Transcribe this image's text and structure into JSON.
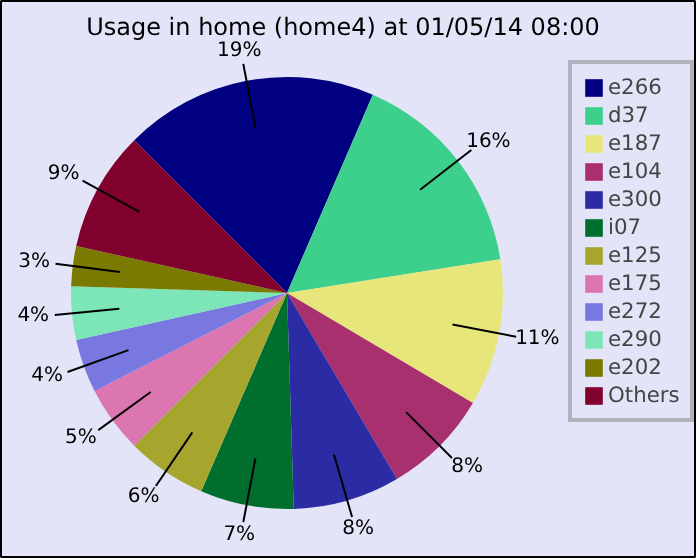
{
  "chart_data": {
    "type": "pie",
    "title": "Usage in home (home4) at 01/05/14 08:00",
    "categories": [
      "e266",
      "d37",
      "e187",
      "e104",
      "e300",
      "i07",
      "e125",
      "e175",
      "e272",
      "e290",
      "e202",
      "Others"
    ],
    "values": [
      19,
      16,
      11,
      8,
      8,
      7,
      6,
      5,
      4,
      4,
      3,
      9
    ],
    "colors": [
      "#000080",
      "#3dcf8c",
      "#e6e67a",
      "#a8306e",
      "#2b2ba3",
      "#006f2e",
      "#a6a62e",
      "#db76b0",
      "#7878e0",
      "#7ce6b8",
      "#7a7a00",
      "#80002e"
    ],
    "value_labels": [
      "19%",
      "16%",
      "11%",
      "8%",
      "8%",
      "7%",
      "6%",
      "5%",
      "4%",
      "4%",
      "3%",
      "9%"
    ],
    "legend": "right"
  }
}
